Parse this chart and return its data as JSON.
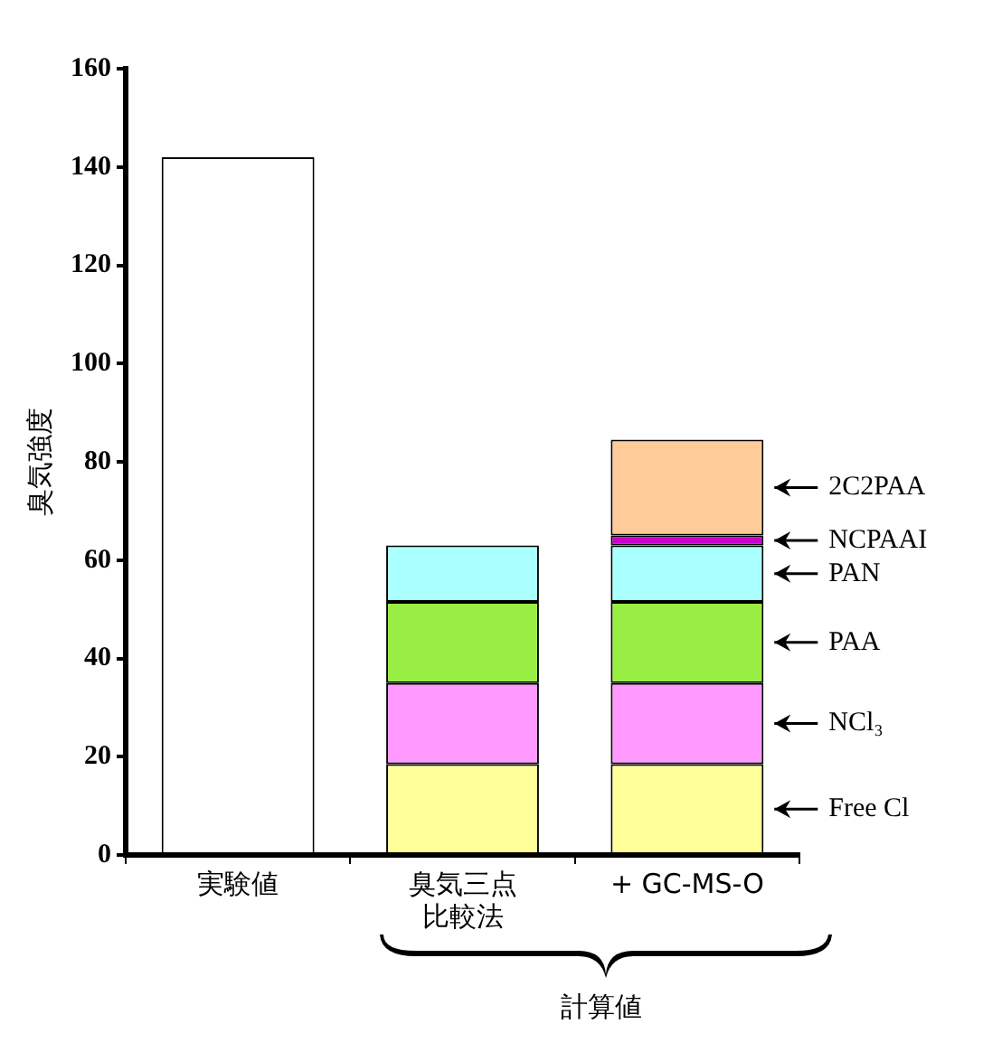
{
  "chart_data": {
    "type": "bar",
    "stacked": true,
    "ylabel": "臭気強度",
    "categories": [
      "実験値",
      "臭気三点比較法",
      "+ GC-MS-O"
    ],
    "series": [
      {
        "color": "#ffffff",
        "values": [
          142,
          null,
          null
        ]
      },
      {
        "name": "Free Cl",
        "color": "#ffff99",
        "values": [
          null,
          18.5,
          18.5
        ]
      },
      {
        "name": "NCl₃",
        "color": "#ff99ff",
        "values": [
          null,
          16.5,
          16.5
        ]
      },
      {
        "name": "PAA",
        "color": "#99ee44",
        "values": [
          null,
          16.5,
          16.5
        ]
      },
      {
        "name": "PAN",
        "color": "#aaffff",
        "values": [
          null,
          11.5,
          11.5
        ]
      },
      {
        "name": "NCPAAI",
        "color": "#cc00cc",
        "values": [
          null,
          null,
          2
        ]
      },
      {
        "name": "2C2PAA",
        "color": "#ffcc99",
        "values": [
          null,
          null,
          19.5
        ]
      }
    ],
    "ylim": [
      0,
      160
    ],
    "yticks": [
      0,
      20,
      40,
      60,
      80,
      100,
      120,
      140,
      160
    ],
    "grid": false,
    "legend": "right",
    "annotations": [
      "計算値"
    ]
  }
}
